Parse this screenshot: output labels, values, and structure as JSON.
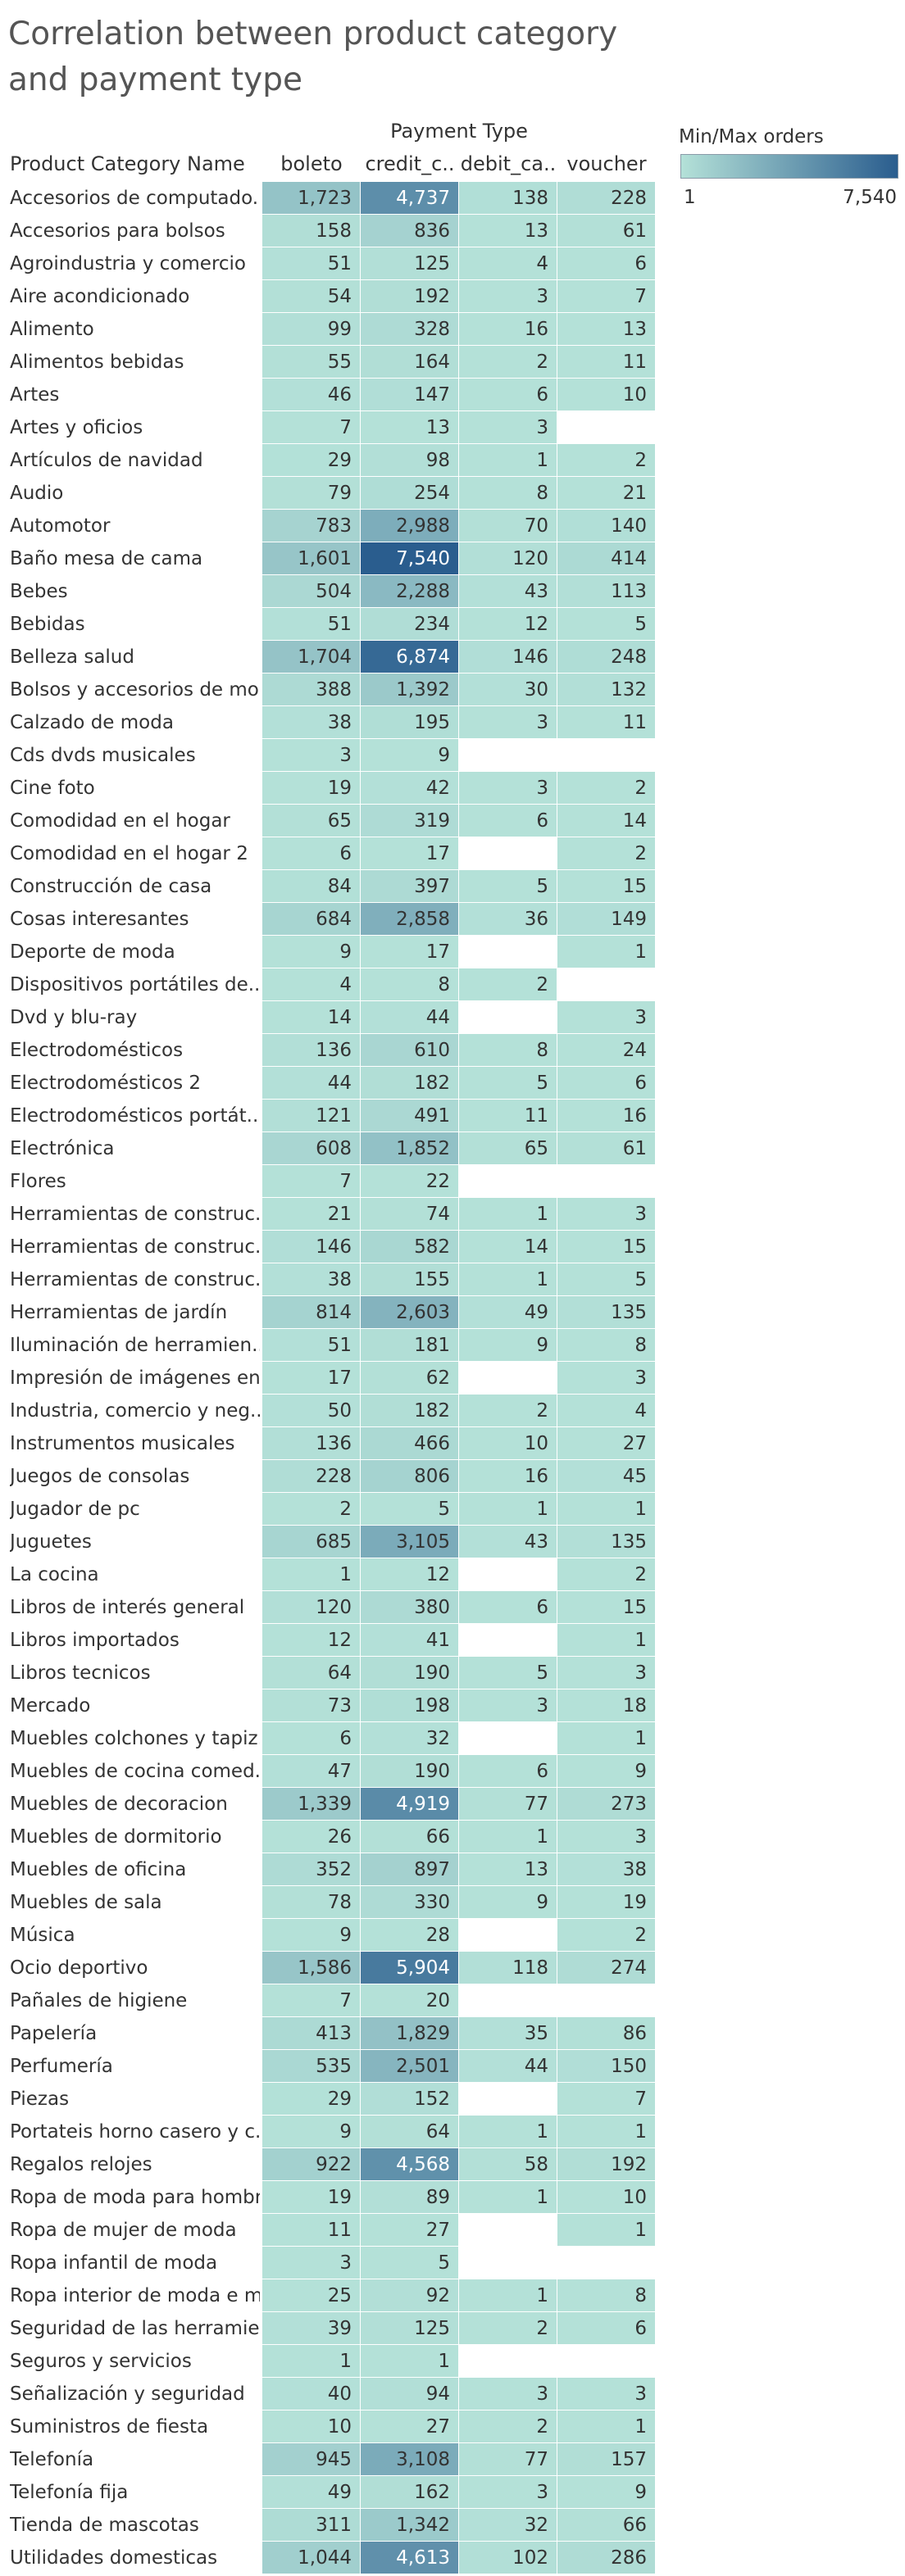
{
  "title": "Correlation between product category and payment type",
  "legend": {
    "title": "Min/Max orders",
    "min_label": "1",
    "max_label": "7,540",
    "min_color": "#b4e1d8",
    "max_color": "#2a5d8e"
  },
  "chart_data": {
    "type": "heatmap",
    "group_header": "Payment Type",
    "row_header": "Product Category Name",
    "columns": [
      "boleto",
      "credit_c..",
      "debit_ca..",
      "voucher"
    ],
    "value_range": [
      1,
      7540
    ],
    "rows": [
      {
        "label": "Accesorios de computado..",
        "values": [
          1723,
          4737,
          138,
          228
        ]
      },
      {
        "label": "Accesorios para bolsos",
        "values": [
          158,
          836,
          13,
          61
        ]
      },
      {
        "label": "Agroindustria y comercio",
        "values": [
          51,
          125,
          4,
          6
        ]
      },
      {
        "label": "Aire acondicionado",
        "values": [
          54,
          192,
          3,
          7
        ]
      },
      {
        "label": "Alimento",
        "values": [
          99,
          328,
          16,
          13
        ]
      },
      {
        "label": "Alimentos bebidas",
        "values": [
          55,
          164,
          2,
          11
        ]
      },
      {
        "label": "Artes",
        "values": [
          46,
          147,
          6,
          10
        ]
      },
      {
        "label": "Artes y oficios",
        "values": [
          7,
          13,
          3,
          null
        ]
      },
      {
        "label": "Artículos de navidad",
        "values": [
          29,
          98,
          1,
          2
        ]
      },
      {
        "label": "Audio",
        "values": [
          79,
          254,
          8,
          21
        ]
      },
      {
        "label": "Automotor",
        "values": [
          783,
          2988,
          70,
          140
        ]
      },
      {
        "label": "Baño mesa de cama",
        "values": [
          1601,
          7540,
          120,
          414
        ]
      },
      {
        "label": "Bebes",
        "values": [
          504,
          2288,
          43,
          113
        ]
      },
      {
        "label": "Bebidas",
        "values": [
          51,
          234,
          12,
          5
        ]
      },
      {
        "label": "Belleza salud",
        "values": [
          1704,
          6874,
          146,
          248
        ]
      },
      {
        "label": "Bolsos y accesorios de mo..",
        "values": [
          388,
          1392,
          30,
          132
        ]
      },
      {
        "label": "Calzado de moda",
        "values": [
          38,
          195,
          3,
          11
        ]
      },
      {
        "label": "Cds dvds musicales",
        "values": [
          3,
          9,
          null,
          null
        ]
      },
      {
        "label": "Cine foto",
        "values": [
          19,
          42,
          3,
          2
        ]
      },
      {
        "label": "Comodidad en el hogar",
        "values": [
          65,
          319,
          6,
          14
        ]
      },
      {
        "label": "Comodidad en el hogar 2",
        "values": [
          6,
          17,
          null,
          2
        ]
      },
      {
        "label": "Construcción de casa",
        "values": [
          84,
          397,
          5,
          15
        ]
      },
      {
        "label": "Cosas interesantes",
        "values": [
          684,
          2858,
          36,
          149
        ]
      },
      {
        "label": "Deporte de moda",
        "values": [
          9,
          17,
          null,
          1
        ]
      },
      {
        "label": "Dispositivos portátiles de..",
        "values": [
          4,
          8,
          2,
          null
        ]
      },
      {
        "label": "Dvd y blu-ray",
        "values": [
          14,
          44,
          null,
          3
        ]
      },
      {
        "label": "Electrodomésticos",
        "values": [
          136,
          610,
          8,
          24
        ]
      },
      {
        "label": "Electrodomésticos 2",
        "values": [
          44,
          182,
          5,
          6
        ]
      },
      {
        "label": "Electrodomésticos portát..",
        "values": [
          121,
          491,
          11,
          16
        ]
      },
      {
        "label": "Electrónica",
        "values": [
          608,
          1852,
          65,
          61
        ]
      },
      {
        "label": "Flores",
        "values": [
          7,
          22,
          null,
          null
        ]
      },
      {
        "label": "Herramientas de construc..",
        "values": [
          21,
          74,
          1,
          3
        ]
      },
      {
        "label": "Herramientas de construc..",
        "values": [
          146,
          582,
          14,
          15
        ]
      },
      {
        "label": "Herramientas de construc..",
        "values": [
          38,
          155,
          1,
          5
        ]
      },
      {
        "label": "Herramientas de jardín",
        "values": [
          814,
          2603,
          49,
          135
        ]
      },
      {
        "label": "Iluminación de herramien..",
        "values": [
          51,
          181,
          9,
          8
        ]
      },
      {
        "label": "Impresión de imágenes en..",
        "values": [
          17,
          62,
          null,
          3
        ]
      },
      {
        "label": "Industria, comercio y neg..",
        "values": [
          50,
          182,
          2,
          4
        ]
      },
      {
        "label": "Instrumentos musicales",
        "values": [
          136,
          466,
          10,
          27
        ]
      },
      {
        "label": "Juegos de consolas",
        "values": [
          228,
          806,
          16,
          45
        ]
      },
      {
        "label": "Jugador de pc",
        "values": [
          2,
          5,
          1,
          1
        ]
      },
      {
        "label": "Juguetes",
        "values": [
          685,
          3105,
          43,
          135
        ]
      },
      {
        "label": "La cocina",
        "values": [
          1,
          12,
          null,
          2
        ]
      },
      {
        "label": "Libros de interés general",
        "values": [
          120,
          380,
          6,
          15
        ]
      },
      {
        "label": "Libros importados",
        "values": [
          12,
          41,
          null,
          1
        ]
      },
      {
        "label": "Libros tecnicos",
        "values": [
          64,
          190,
          5,
          3
        ]
      },
      {
        "label": "Mercado",
        "values": [
          73,
          198,
          3,
          18
        ]
      },
      {
        "label": "Muebles colchones y tapiz..",
        "values": [
          6,
          32,
          null,
          1
        ]
      },
      {
        "label": "Muebles de cocina comed..",
        "values": [
          47,
          190,
          6,
          9
        ]
      },
      {
        "label": "Muebles de decoracion",
        "values": [
          1339,
          4919,
          77,
          273
        ]
      },
      {
        "label": "Muebles de dormitorio",
        "values": [
          26,
          66,
          1,
          3
        ]
      },
      {
        "label": "Muebles de oficina",
        "values": [
          352,
          897,
          13,
          38
        ]
      },
      {
        "label": "Muebles de sala",
        "values": [
          78,
          330,
          9,
          19
        ]
      },
      {
        "label": "Música",
        "values": [
          9,
          28,
          null,
          2
        ]
      },
      {
        "label": "Ocio deportivo",
        "values": [
          1586,
          5904,
          118,
          274
        ]
      },
      {
        "label": "Pañales de higiene",
        "values": [
          7,
          20,
          null,
          null
        ]
      },
      {
        "label": "Papelería",
        "values": [
          413,
          1829,
          35,
          86
        ]
      },
      {
        "label": "Perfumería",
        "values": [
          535,
          2501,
          44,
          150
        ]
      },
      {
        "label": "Piezas",
        "values": [
          29,
          152,
          null,
          7
        ]
      },
      {
        "label": "Portateis horno casero y c..",
        "values": [
          9,
          64,
          1,
          1
        ]
      },
      {
        "label": "Regalos relojes",
        "values": [
          922,
          4568,
          58,
          192
        ]
      },
      {
        "label": "Ropa de moda para hombr..",
        "values": [
          19,
          89,
          1,
          10
        ]
      },
      {
        "label": "Ropa de mujer de moda",
        "values": [
          11,
          27,
          null,
          1
        ]
      },
      {
        "label": "Ropa infantil de moda",
        "values": [
          3,
          5,
          null,
          null
        ]
      },
      {
        "label": "Ropa interior de moda e m..",
        "values": [
          25,
          92,
          1,
          8
        ]
      },
      {
        "label": "Seguridad de las herramie..",
        "values": [
          39,
          125,
          2,
          6
        ]
      },
      {
        "label": "Seguros y servicios",
        "values": [
          1,
          1,
          null,
          null
        ]
      },
      {
        "label": "Señalización y seguridad",
        "values": [
          40,
          94,
          3,
          3
        ]
      },
      {
        "label": "Suministros de fiesta",
        "values": [
          10,
          27,
          2,
          1
        ]
      },
      {
        "label": "Telefonía",
        "values": [
          945,
          3108,
          77,
          157
        ]
      },
      {
        "label": "Telefonía fija",
        "values": [
          49,
          162,
          3,
          9
        ]
      },
      {
        "label": "Tienda de mascotas",
        "values": [
          311,
          1342,
          32,
          66
        ]
      },
      {
        "label": "Utilidades domesticas",
        "values": [
          1044,
          4613,
          102,
          286
        ]
      }
    ]
  }
}
